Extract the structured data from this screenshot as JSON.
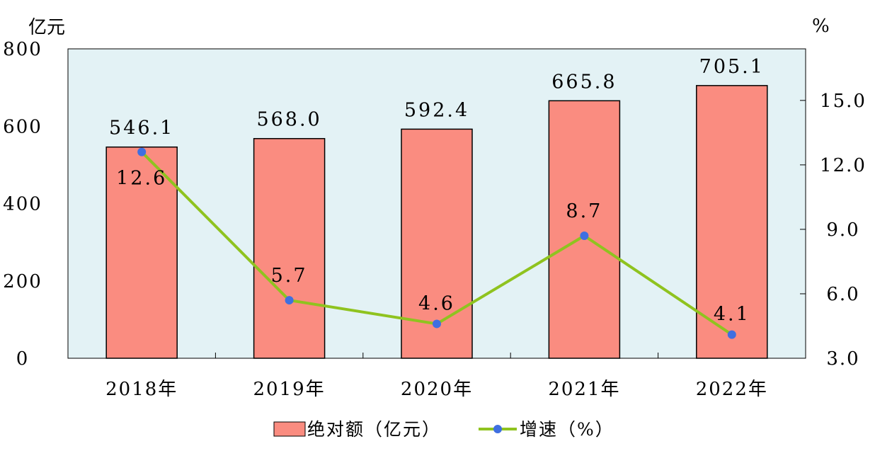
{
  "chart_data": {
    "type": "bar",
    "categories": [
      "2018年",
      "2019年",
      "2020年",
      "2021年",
      "2022年"
    ],
    "series": [
      {
        "name": "绝对额（亿元）",
        "type": "bar",
        "axis": "left",
        "values": [
          546.1,
          568.0,
          592.4,
          665.8,
          705.1
        ],
        "labels": [
          "546.1",
          "568.0",
          "592.4",
          "665.8",
          "705.1"
        ],
        "color": "#fa8c80"
      },
      {
        "name": "增速（%）",
        "type": "line",
        "axis": "right",
        "values": [
          12.6,
          5.7,
          4.6,
          8.7,
          4.1
        ],
        "labels": [
          "12.6",
          "5.7",
          "4.6",
          "8.7",
          "4.1"
        ],
        "color": "#8fc31f",
        "marker_color": "#3f6fe0"
      }
    ],
    "y_left": {
      "unit": "亿元",
      "ylim": [
        0,
        800
      ],
      "ticks": [
        "0",
        "200",
        "400",
        "600",
        "800"
      ]
    },
    "y_right": {
      "unit": "%",
      "ylim": [
        3.0,
        17.4
      ],
      "ticks": [
        "3.0",
        "6.0",
        "9.0",
        "12.0",
        "15.0"
      ]
    },
    "plot_background": "#e3f2f5",
    "grid": false,
    "legend_position": "bottom-center"
  }
}
